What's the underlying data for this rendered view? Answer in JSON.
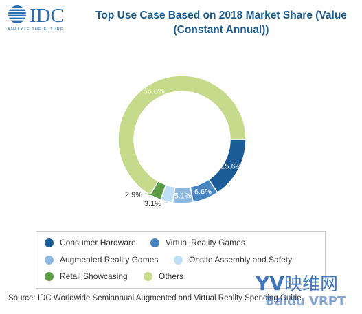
{
  "logo": {
    "text": "IDC",
    "tagline": "ANALYZE THE FUTURE"
  },
  "header": {
    "title": "Top Use Case Based on 2018 Market Share (Value (Constant Annual))"
  },
  "chart_data": {
    "type": "pie",
    "title": "Top Use Case Based on 2018 Market Share (Value (Constant Annual))",
    "donut": true,
    "slices": [
      {
        "name": "Consumer Hardware",
        "value": 15.6,
        "label": "15.6%",
        "color": "#1c5c99"
      },
      {
        "name": "Virtual Reality Games",
        "value": 6.6,
        "label": "6.6%",
        "color": "#4a87c2"
      },
      {
        "name": "Augmented Reality Games",
        "value": 5.1,
        "label": "5.1%",
        "color": "#8fb8e0"
      },
      {
        "name": "Onsite Assembly and Safety",
        "value": 3.1,
        "label": "3.1%",
        "color": "#bfdff6"
      },
      {
        "name": "Retail Showcasing",
        "value": 2.9,
        "label": "2.9%",
        "color": "#5d9c47"
      },
      {
        "name": "Others",
        "value": 66.6,
        "label": "66.6%",
        "color": "#c6da8c"
      }
    ],
    "legend_placement": "bottom"
  },
  "legend": {
    "items": [
      {
        "label": "Consumer Hardware",
        "color": "#1c5c99"
      },
      {
        "label": "Virtual Reality Games",
        "color": "#4a87c2"
      },
      {
        "label": "Augmented Reality Games",
        "color": "#8fb8e0"
      },
      {
        "label": "Onsite Assembly and Safety",
        "color": "#bfdff6"
      },
      {
        "label": "Retail Showcasing",
        "color": "#5d9c47"
      },
      {
        "label": "Others",
        "color": "#c6da8c"
      }
    ]
  },
  "source": "Source: IDC Worldwide Semiannual Augmented and Virtual Reality Spending Guide",
  "watermark": {
    "text": "YV映维网",
    "sub": "Baidu VRPT"
  }
}
